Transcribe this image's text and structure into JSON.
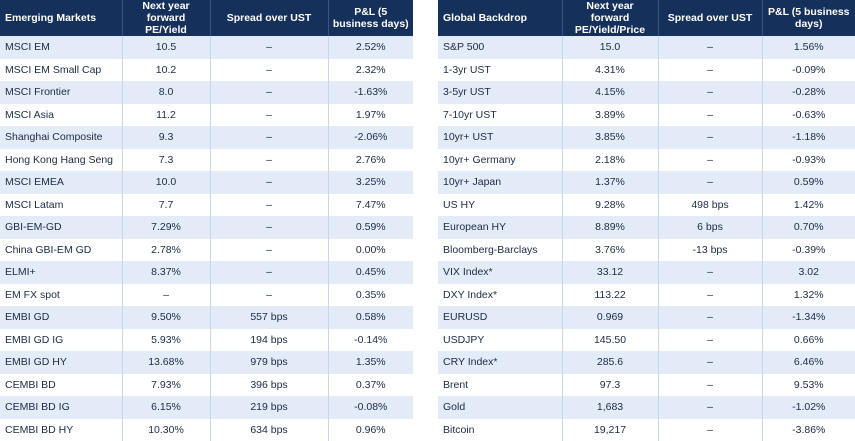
{
  "tables": [
    {
      "headers": [
        "Emerging Markets",
        "Next year forward PE/Yield",
        "Spread over UST",
        "P&L (5 business days)"
      ],
      "rows": [
        [
          "MSCI EM",
          "10.5",
          "–",
          "2.52%"
        ],
        [
          "MSCI EM Small Cap",
          "10.2",
          "–",
          "2.32%"
        ],
        [
          "MSCI Frontier",
          "8.0",
          "–",
          "-1.63%"
        ],
        [
          "MSCI Asia",
          "11.2",
          "–",
          "1.97%"
        ],
        [
          "Shanghai Composite",
          "9.3",
          "–",
          "-2.06%"
        ],
        [
          "Hong Kong Hang Seng",
          "7.3",
          "–",
          "2.76%"
        ],
        [
          "MSCI EMEA",
          "10.0",
          "–",
          "3.25%"
        ],
        [
          "MSCI Latam",
          "7.7",
          "–",
          "7.47%"
        ],
        [
          "GBI-EM-GD",
          "7.29%",
          "–",
          "0.59%"
        ],
        [
          "China GBI-EM GD",
          "2.78%",
          "–",
          "0.00%"
        ],
        [
          "ELMI+",
          "8.37%",
          "–",
          "0.45%"
        ],
        [
          "EM FX spot",
          "–",
          "–",
          "0.35%"
        ],
        [
          "EMBI GD",
          "9.50%",
          "557 bps",
          "0.58%"
        ],
        [
          "EMBI GD IG",
          "5.93%",
          "194 bps",
          "-0.14%"
        ],
        [
          "EMBI GD HY",
          "13.68%",
          "979 bps",
          "1.35%"
        ],
        [
          "CEMBI BD",
          "7.93%",
          "396 bps",
          "0.37%"
        ],
        [
          "CEMBI BD IG",
          "6.15%",
          "219 bps",
          "-0.08%"
        ],
        [
          "CEMBI BD HY",
          "10.30%",
          "634 bps",
          "0.96%"
        ]
      ]
    },
    {
      "headers": [
        "Global Backdrop",
        "Next year forward PE/Yield/Price",
        "Spread over UST",
        "P&L (5 business days)"
      ],
      "rows": [
        [
          "S&P 500",
          "15.0",
          "–",
          "1.56%"
        ],
        [
          "1-3yr UST",
          "4.31%",
          "–",
          "-0.09%"
        ],
        [
          "3-5yr UST",
          "4.15%",
          "–",
          "-0.28%"
        ],
        [
          "7-10yr UST",
          "3.89%",
          "–",
          "-0.63%"
        ],
        [
          "10yr+ UST",
          "3.85%",
          "–",
          "-1.18%"
        ],
        [
          "10yr+ Germany",
          "2.18%",
          "–",
          "-0.93%"
        ],
        [
          "10yr+ Japan",
          "1.37%",
          "–",
          "0.59%"
        ],
        [
          "US HY",
          "9.28%",
          "498 bps",
          "1.42%"
        ],
        [
          "European HY",
          "8.89%",
          "6 bps",
          "0.70%"
        ],
        [
          "Bloomberg-Barclays",
          "3.76%",
          "-13 bps",
          "-0.39%"
        ],
        [
          "VIX Index*",
          "33.12",
          "–",
          "3.02"
        ],
        [
          "DXY Index*",
          "113.22",
          "–",
          "1.32%"
        ],
        [
          "EURUSD",
          "0.969",
          "–",
          "-1.34%"
        ],
        [
          "USDJPY",
          "145.50",
          "–",
          "0.66%"
        ],
        [
          "CRY Index*",
          "285.6",
          "–",
          "6.46%"
        ],
        [
          "Brent",
          "97.3",
          "–",
          "9.53%"
        ],
        [
          "Gold",
          "1,683",
          "–",
          "-1.02%"
        ],
        [
          "Bitcoin",
          "19,217",
          "–",
          "-3.86%"
        ]
      ]
    }
  ]
}
